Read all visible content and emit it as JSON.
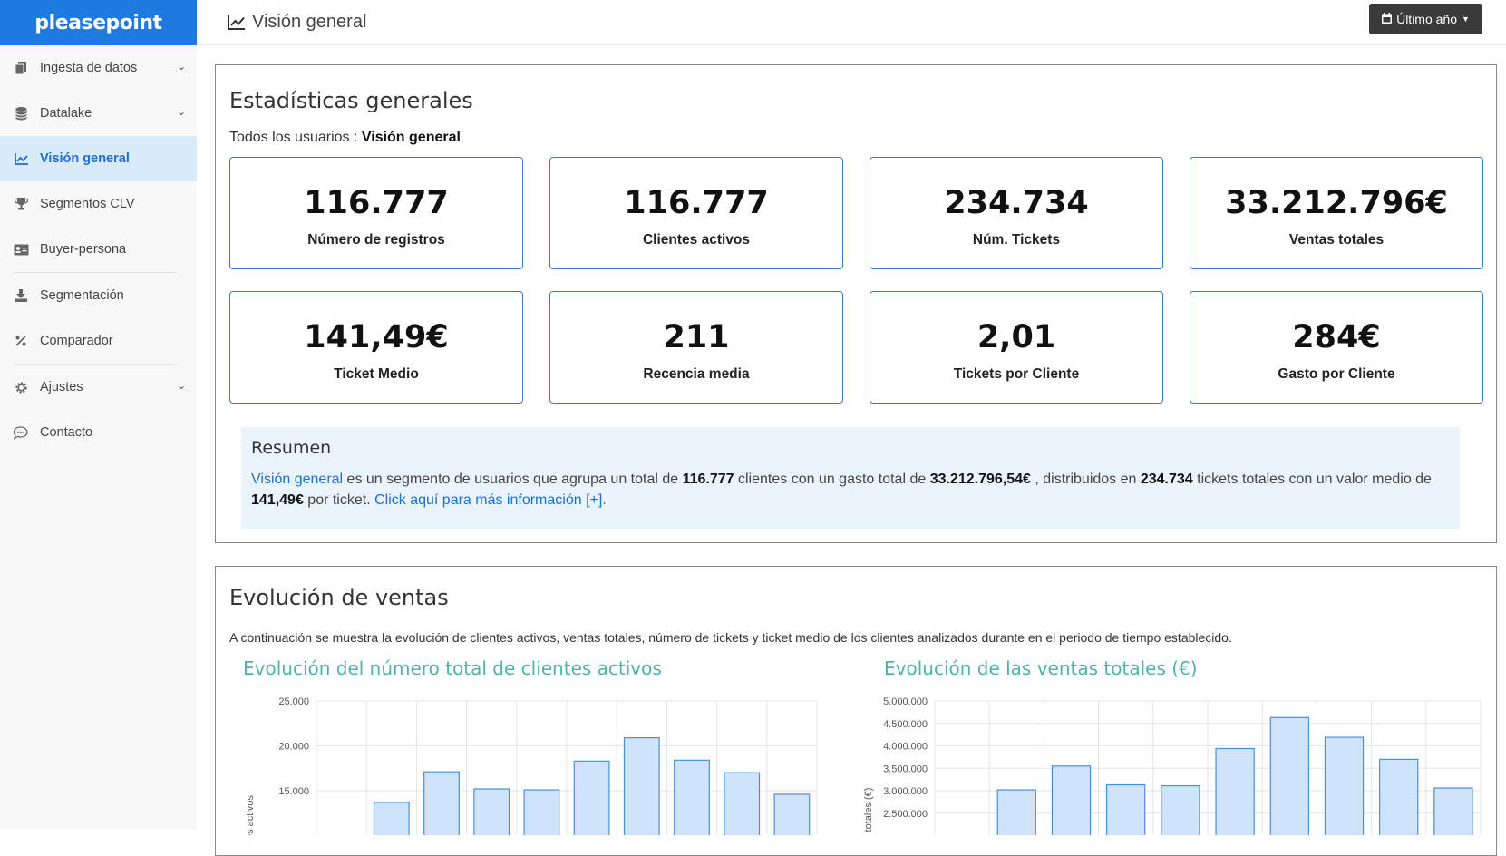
{
  "brand": "pleasepoint",
  "header": {
    "title": "Visión general",
    "icon": "line-chart-icon",
    "period_label": "Último año"
  },
  "sidebar": {
    "items": [
      {
        "label": "Ingesta de datos",
        "icon": "files-icon",
        "expandable": true
      },
      {
        "label": "Datalake",
        "icon": "database-icon",
        "expandable": true
      },
      {
        "label": "Visión general",
        "icon": "line-chart-icon",
        "active": true
      },
      {
        "label": "Segmentos CLV",
        "icon": "trophy-icon"
      },
      {
        "label": "Buyer-persona",
        "icon": "id-card-icon"
      },
      {
        "label": "Segmentación",
        "icon": "download-icon"
      },
      {
        "label": "Comparador",
        "icon": "percent-icon"
      },
      {
        "label": "Ajustes",
        "icon": "gear-icon",
        "expandable": true
      },
      {
        "label": "Contacto",
        "icon": "chat-icon"
      }
    ]
  },
  "stats": {
    "title": "Estadísticas generales",
    "subtitle_prefix": "Todos los usuarios :",
    "subtitle_segment": "Visión general",
    "cards": [
      {
        "value": "116.777",
        "label": "Número de registros"
      },
      {
        "value": "116.777",
        "label": "Clientes activos"
      },
      {
        "value": "234.734",
        "label": "Núm. Tickets"
      },
      {
        "value": "33.212.796€",
        "label": "Ventas totales"
      },
      {
        "value": "141,49€",
        "label": "Ticket Medio"
      },
      {
        "value": "211",
        "label": "Recencia media"
      },
      {
        "value": "2,01",
        "label": "Tickets por Cliente"
      },
      {
        "value": "284€",
        "label": "Gasto por Cliente"
      }
    ]
  },
  "resumen": {
    "title": "Resumen",
    "segment_link": "Visión general",
    "t1": " es un segmento de usuarios que agrupa un total de ",
    "v1": "116.777",
    "t2": " clientes con un gasto total de ",
    "v2": "33.212.796,54€",
    "t3": " , distribuidos en ",
    "v3": "234.734",
    "t4": " tickets totales con un valor medio de ",
    "v4": "141,49€",
    "t5": " por ticket. ",
    "more_link": "Click aquí para más información [+]."
  },
  "sales": {
    "title": "Evolución de ventas",
    "description": "A continuación se muestra la evolución de clientes activos, ventas totales, número de tickets y ticket medio de los clientes analizados durante en el periodo de tiempo establecido."
  },
  "chart_data": [
    {
      "type": "bar",
      "title": "Evolución del número total de clientes activos",
      "ylabel": "es activos",
      "y_ticks": [
        "25.000",
        "20.000",
        "15.000"
      ],
      "tick_values": [
        25000,
        20000,
        15000
      ],
      "ylim_visible": [
        14000,
        25000
      ],
      "values": [
        null,
        13700,
        17100,
        15200,
        15100,
        18300,
        20900,
        18400,
        17000,
        14600
      ],
      "bar_color": "#cfe3fb",
      "bar_border": "#4a90d9"
    },
    {
      "type": "bar",
      "title": "Evolución de las ventas totales (€)",
      "ylabel": "s totales (€)",
      "y_ticks": [
        "5.000.000",
        "4.500.000",
        "4.000.000",
        "3.500.000",
        "3.000.000",
        "2.500.000"
      ],
      "tick_values": [
        5000000,
        4500000,
        4000000,
        3500000,
        3000000,
        2500000
      ],
      "ylim_visible": [
        2400000,
        5000000
      ],
      "values": [
        null,
        3020000,
        3550000,
        3130000,
        3110000,
        3940000,
        4630000,
        4190000,
        3700000,
        3060000
      ],
      "bar_color": "#cfe3fb",
      "bar_border": "#4a90d9"
    }
  ]
}
